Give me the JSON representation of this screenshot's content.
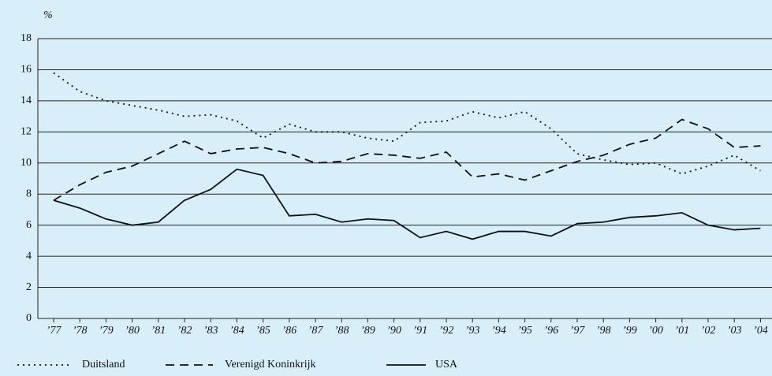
{
  "chart_data": {
    "type": "line",
    "y_label": "%",
    "categories": [
      "’77",
      "’78",
      "’79",
      "’80",
      "’81",
      "’82",
      "’83",
      "’84",
      "’85",
      "’86",
      "’87",
      "’88",
      "’89",
      "’90",
      "’91",
      "’92",
      "’93",
      "’94",
      "’95",
      "’96",
      "’97",
      "’98",
      "’99",
      "’00",
      "’01",
      "’02",
      "’03",
      "’04"
    ],
    "series": [
      {
        "name": "Duitsland",
        "color": "#111111",
        "dash": "dotted",
        "values": [
          15.8,
          14.6,
          14.0,
          13.7,
          13.4,
          13.0,
          13.1,
          12.7,
          11.6,
          12.5,
          12.0,
          12.0,
          11.6,
          11.4,
          12.6,
          12.7,
          13.3,
          12.9,
          13.3,
          12.2,
          10.6,
          10.2,
          9.9,
          10.0,
          9.3,
          9.8,
          10.5,
          9.5
        ]
      },
      {
        "name": "Verenigd Koninkrijk",
        "color": "#111111",
        "dash": "dashed",
        "values": [
          7.6,
          8.6,
          9.4,
          9.8,
          10.6,
          11.4,
          10.6,
          10.9,
          11.0,
          10.6,
          10.0,
          10.1,
          10.6,
          10.5,
          10.3,
          10.7,
          9.1,
          9.3,
          8.9,
          9.5,
          10.1,
          10.5,
          11.2,
          11.6,
          12.8,
          12.2,
          11.0,
          11.1
        ]
      },
      {
        "name": "USA",
        "color": "#111111",
        "dash": "solid",
        "values": [
          7.6,
          7.1,
          6.4,
          6.0,
          6.2,
          7.6,
          8.3,
          9.6,
          9.2,
          6.6,
          6.7,
          6.2,
          6.4,
          6.3,
          5.2,
          5.6,
          5.1,
          5.6,
          5.6,
          5.3,
          6.1,
          6.2,
          6.5,
          6.6,
          6.8,
          6.0,
          5.7,
          5.8
        ]
      }
    ],
    "ylim": [
      0,
      18
    ],
    "yticks": [
      0,
      2,
      4,
      6,
      8,
      10,
      12,
      14,
      16,
      18
    ],
    "grid": true,
    "legend": "bottom"
  }
}
